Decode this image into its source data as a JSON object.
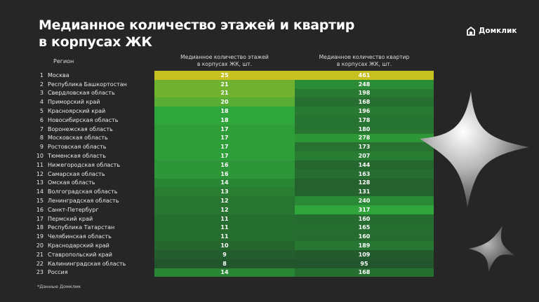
{
  "title_line1": "Медианное количество этажей и квартир",
  "title_line2": "в корпусах ЖК",
  "logo": {
    "text": "Домклик",
    "icon": "house-icon"
  },
  "footnote": "*Данные Домклик",
  "chart_data": {
    "type": "table",
    "columns": {
      "region": "Регион",
      "floors_l1": "Медианное количество этажей",
      "floors_l2": "в корпусах ЖК, шт.",
      "flats_l1": "Медианное количество квартир",
      "flats_l2": "в корпусах ЖК, шт."
    },
    "rows": [
      {
        "n": "1",
        "region": "Москва",
        "floors": 25,
        "flats": 461
      },
      {
        "n": "2",
        "region": "Республика Башкортостан",
        "floors": 21,
        "flats": 248
      },
      {
        "n": "3",
        "region": "Свердловская область",
        "floors": 21,
        "flats": 198
      },
      {
        "n": "4",
        "region": "Приморский край",
        "floors": 20,
        "flats": 168
      },
      {
        "n": "5",
        "region": "Красноярский край",
        "floors": 18,
        "flats": 196
      },
      {
        "n": "6",
        "region": "Новосибирская область",
        "floors": 18,
        "flats": 178
      },
      {
        "n": "7",
        "region": "Воронежская область",
        "floors": 17,
        "flats": 180
      },
      {
        "n": "8",
        "region": "Московская область",
        "floors": 17,
        "flats": 278
      },
      {
        "n": "9",
        "region": "Ростовская область",
        "floors": 17,
        "flats": 173
      },
      {
        "n": "10",
        "region": "Тюменская область",
        "floors": 17,
        "flats": 207
      },
      {
        "n": "11",
        "region": "Нижегородская область",
        "floors": 16,
        "flats": 144
      },
      {
        "n": "12",
        "region": "Самарская область",
        "floors": 16,
        "flats": 163
      },
      {
        "n": "13",
        "region": "Омская область",
        "floors": 14,
        "flats": 128
      },
      {
        "n": "14",
        "region": "Волгоградская область",
        "floors": 13,
        "flats": 131
      },
      {
        "n": "15",
        "region": "Ленинградская область",
        "floors": 12,
        "flats": 240
      },
      {
        "n": "16",
        "region": "Санкт-Петербург",
        "floors": 12,
        "flats": 317
      },
      {
        "n": "17",
        "region": "Пермский край",
        "floors": 11,
        "flats": 160
      },
      {
        "n": "18",
        "region": "Республика Татарстан",
        "floors": 11,
        "flats": 165
      },
      {
        "n": "19",
        "region": "Челябинская область",
        "floors": 11,
        "flats": 160
      },
      {
        "n": "20",
        "region": "Краснодарский край",
        "floors": 10,
        "flats": 189
      },
      {
        "n": "21",
        "region": "Ставропольский край",
        "floors": 9,
        "flats": 109
      },
      {
        "n": "22",
        "region": "Калининградская область",
        "floors": 8,
        "flats": 95
      },
      {
        "n": "23",
        "region": "Россия",
        "floors": 14,
        "flats": 168
      }
    ],
    "colors": {
      "low": "#22552b",
      "mid": "#2fa63b",
      "high": "#c6c021"
    }
  }
}
